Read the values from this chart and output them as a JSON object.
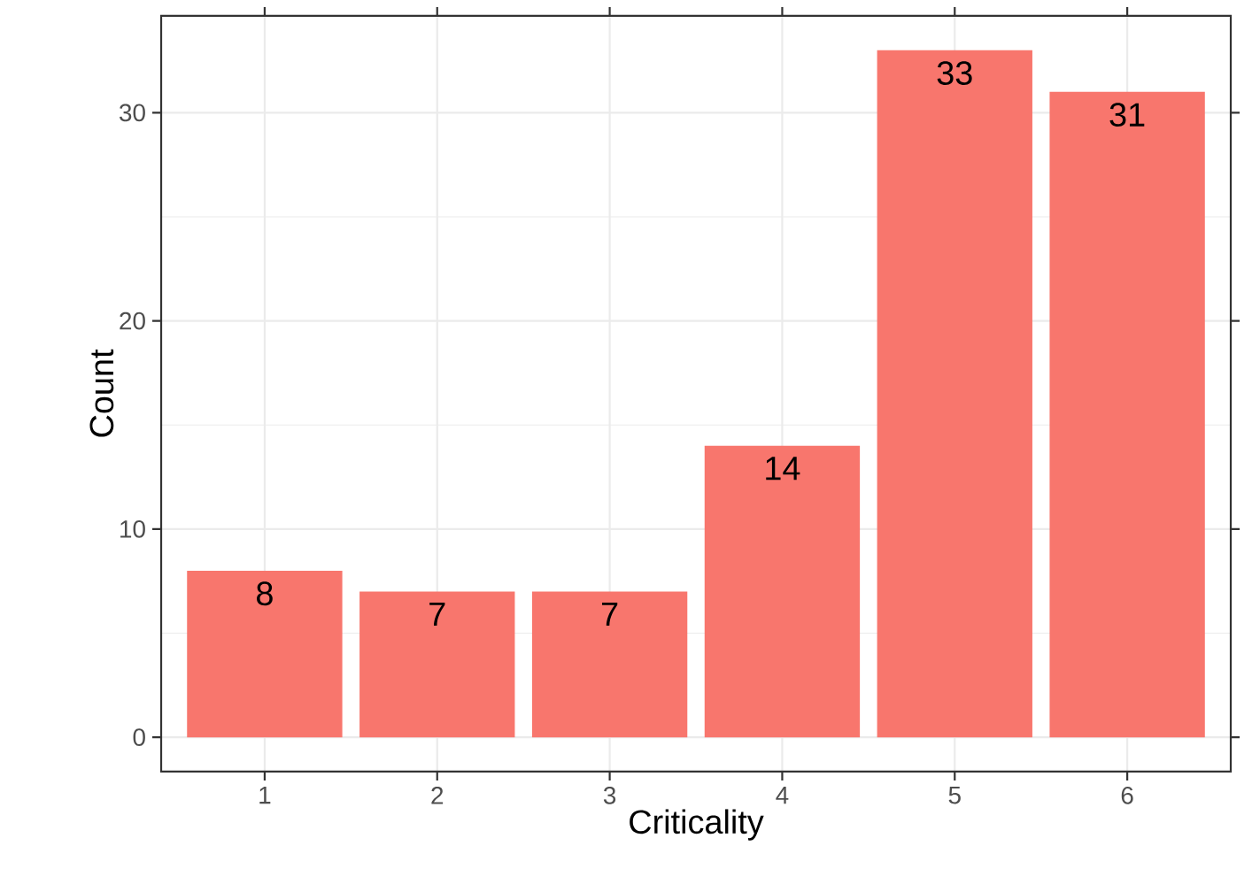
{
  "chart_data": {
    "type": "bar",
    "xlabel": "Criticality",
    "ylabel": "Count",
    "categories": [
      "1",
      "2",
      "3",
      "4",
      "5",
      "6"
    ],
    "values": [
      8,
      7,
      7,
      14,
      33,
      31
    ],
    "color": "#f8766d",
    "ylim": [
      -1.65,
      34.65
    ],
    "yticks": [
      0,
      10,
      20,
      30
    ],
    "grid": true,
    "data_labels": true
  }
}
